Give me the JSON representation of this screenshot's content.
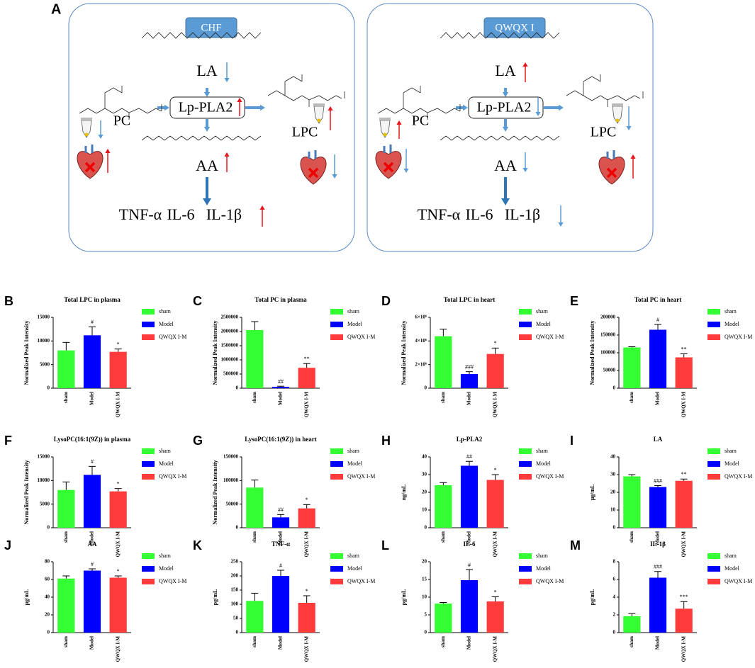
{
  "diagram": {
    "label": "A",
    "panels": [
      {
        "title": "CHF",
        "la": "LA",
        "enzyme": "Lp-PLA2",
        "pc": "PC",
        "lpc": "LPC",
        "aa": "AA",
        "cytokines": [
          "TNF-α",
          "IL-6",
          "IL-1β"
        ],
        "trends": {
          "la": "down",
          "enzyme": "up",
          "pc_plasma": "down",
          "pc_heart": "up",
          "lpc_plasma": "up",
          "lpc_heart": "down",
          "aa": "up",
          "cytokines": "up"
        }
      },
      {
        "title": "QWQX I",
        "la": "LA",
        "enzyme": "Lp-PLA2",
        "pc": "PC",
        "lpc": "LPC",
        "aa": "AA",
        "cytokines": [
          "TNF-α",
          "IL-6",
          "IL-1β"
        ],
        "trends": {
          "la": "up",
          "enzyme": "down",
          "pc_plasma": "up",
          "pc_heart": "down",
          "lpc_plasma": "down",
          "lpc_heart": "up",
          "aa": "down",
          "cytokines": "down"
        }
      }
    ],
    "trend_colors": {
      "up": "#e8141b",
      "down": "#5b9bd5"
    }
  },
  "chart_data": [
    {
      "type": "bar",
      "panel": "B",
      "title": "Total LPC in plasma",
      "y_label": "Normalized Peak Intensity",
      "categories": [
        "sham",
        "Model",
        "QWQX I-M"
      ],
      "colors": [
        "#33ff33",
        "#0000ff",
        "#ff3b3b"
      ],
      "values": [
        8000,
        11200,
        7700
      ],
      "errors": [
        1700,
        1800,
        600
      ],
      "significance": [
        null,
        "#",
        "*"
      ],
      "ylim": [
        0,
        15000
      ],
      "yticks": [
        0,
        5000,
        10000,
        15000
      ]
    },
    {
      "type": "bar",
      "panel": "C",
      "title": "Total PC in plasma",
      "y_label": "Normalized Peak Intensity",
      "categories": [
        "sham",
        "Model",
        "QWQX I-M"
      ],
      "colors": [
        "#33ff33",
        "#0000ff",
        "#ff3b3b"
      ],
      "values": [
        2050000,
        50000,
        720000
      ],
      "errors": [
        300000,
        20000,
        150000
      ],
      "significance": [
        null,
        "##",
        "**"
      ],
      "ylim": [
        0,
        2500000
      ],
      "yticks": [
        0,
        500000,
        1000000,
        1500000,
        2000000,
        2500000
      ]
    },
    {
      "type": "bar",
      "panel": "D",
      "title": "Total LPC in heart",
      "y_label": "Normalized Peak Intensity",
      "categories": [
        "sham",
        "Model",
        "QWQX I-M"
      ],
      "colors": [
        "#33ff33",
        "#0000ff",
        "#ff3b3b"
      ],
      "values": [
        4400000,
        1200000,
        2900000
      ],
      "errors": [
        600000,
        200000,
        500000
      ],
      "significance": [
        null,
        "###",
        "*"
      ],
      "ylim": [
        0,
        6000000
      ],
      "yticks": [
        0,
        {
          "value": 2000000,
          "label": "2×10⁶"
        },
        {
          "value": 4000000,
          "label": "4×10⁶"
        },
        {
          "value": 6000000,
          "label": "6×10⁶"
        }
      ]
    },
    {
      "type": "bar",
      "panel": "E",
      "title": "Total PC in heart",
      "y_label": "Normalized Peak Intensity",
      "categories": [
        "sham",
        "Model",
        "QWQX I-M"
      ],
      "colors": [
        "#33ff33",
        "#0000ff",
        "#ff3b3b"
      ],
      "values": [
        115000,
        165000,
        87000
      ],
      "errors": [
        2000,
        15000,
        10000
      ],
      "significance": [
        null,
        "#",
        "**"
      ],
      "ylim": [
        0,
        200000
      ],
      "yticks": [
        0,
        50000,
        100000,
        150000,
        200000
      ]
    },
    {
      "type": "bar",
      "panel": "F",
      "title": "LysoPC(16:1(9Z)) in plasma",
      "y_label": "Normalized Peak Intensity",
      "categories": [
        "sham",
        "Model",
        "QWQX I-M"
      ],
      "colors": [
        "#33ff33",
        "#0000ff",
        "#ff3b3b"
      ],
      "values": [
        8000,
        11200,
        7700
      ],
      "errors": [
        1700,
        1800,
        600
      ],
      "significance": [
        null,
        "#",
        "*"
      ],
      "ylim": [
        0,
        15000
      ],
      "yticks": [
        0,
        5000,
        10000,
        15000
      ]
    },
    {
      "type": "bar",
      "panel": "G",
      "title": "LysoPC(16:1(9Z)) in heart",
      "y_label": "Normalized Peak Intensity",
      "categories": [
        "sham",
        "Model",
        "QWQX I-M"
      ],
      "colors": [
        "#33ff33",
        "#0000ff",
        "#ff3b3b"
      ],
      "values": [
        85000,
        22000,
        41000
      ],
      "errors": [
        16000,
        6000,
        8000
      ],
      "significance": [
        null,
        "##",
        "*"
      ],
      "ylim": [
        0,
        150000
      ],
      "yticks": [
        0,
        50000,
        100000,
        150000
      ]
    },
    {
      "type": "bar",
      "panel": "H",
      "title": "Lp-PLA2",
      "y_label": "ng/mL",
      "categories": [
        "sham",
        "Model",
        "QWQX I-M"
      ],
      "colors": [
        "#33ff33",
        "#0000ff",
        "#ff3b3b"
      ],
      "values": [
        24,
        35,
        27
      ],
      "errors": [
        1.5,
        2.5,
        3
      ],
      "significance": [
        null,
        "##",
        "*"
      ],
      "ylim": [
        0,
        40
      ],
      "yticks": [
        0,
        10,
        20,
        30,
        40
      ]
    },
    {
      "type": "bar",
      "panel": "I",
      "title": "LA",
      "y_label": "μg/mL",
      "categories": [
        "sham",
        "Model",
        "QWQX I-M"
      ],
      "colors": [
        "#33ff33",
        "#0000ff",
        "#ff3b3b"
      ],
      "values": [
        29,
        23,
        26.5
      ],
      "errors": [
        1,
        0.8,
        1
      ],
      "significance": [
        null,
        "###",
        "**"
      ],
      "ylim": [
        0,
        40
      ],
      "yticks": [
        0,
        10,
        20,
        30,
        40
      ]
    },
    {
      "type": "bar",
      "panel": "J",
      "title": "AA",
      "y_label": "μg/mL",
      "categories": [
        "sham",
        "Model",
        "QWQX I-M"
      ],
      "colors": [
        "#33ff33",
        "#0000ff",
        "#ff3b3b"
      ],
      "values": [
        61,
        70,
        62
      ],
      "errors": [
        3,
        2,
        2
      ],
      "significance": [
        null,
        "#",
        "*"
      ],
      "ylim": [
        0,
        80
      ],
      "yticks": [
        0,
        20,
        40,
        60,
        80
      ]
    },
    {
      "type": "bar",
      "panel": "K",
      "title": "TNF-α",
      "y_label": "pg/mL",
      "categories": [
        "sham",
        "Model",
        "QWQX I-M"
      ],
      "colors": [
        "#33ff33",
        "#0000ff",
        "#ff3b3b"
      ],
      "values": [
        112,
        200,
        105
      ],
      "errors": [
        27,
        20,
        25
      ],
      "significance": [
        null,
        "#",
        "*"
      ],
      "ylim": [
        0,
        250
      ],
      "yticks": [
        0,
        50,
        100,
        150,
        200,
        250
      ]
    },
    {
      "type": "bar",
      "panel": "L",
      "title": "IL-6",
      "y_label": "pg/mL",
      "categories": [
        "sham",
        "Model",
        "QWQX I-M"
      ],
      "colors": [
        "#33ff33",
        "#0000ff",
        "#ff3b3b"
      ],
      "values": [
        8.2,
        14.8,
        8.8
      ],
      "errors": [
        0.3,
        3,
        1.3
      ],
      "significance": [
        null,
        "#",
        "*"
      ],
      "ylim": [
        0,
        20
      ],
      "yticks": [
        0,
        5,
        10,
        15,
        20
      ]
    },
    {
      "type": "bar",
      "panel": "M",
      "title": "IL-1β",
      "y_label": "pg/mL",
      "categories": [
        "sham",
        "Model",
        "QWQX I-M"
      ],
      "colors": [
        "#33ff33",
        "#0000ff",
        "#ff3b3b"
      ],
      "values": [
        1.85,
        6.2,
        2.7
      ],
      "errors": [
        0.3,
        0.7,
        0.8
      ],
      "significance": [
        null,
        "###",
        "***"
      ],
      "ylim": [
        0,
        8
      ],
      "yticks": [
        0,
        2,
        4,
        6,
        8
      ]
    }
  ]
}
